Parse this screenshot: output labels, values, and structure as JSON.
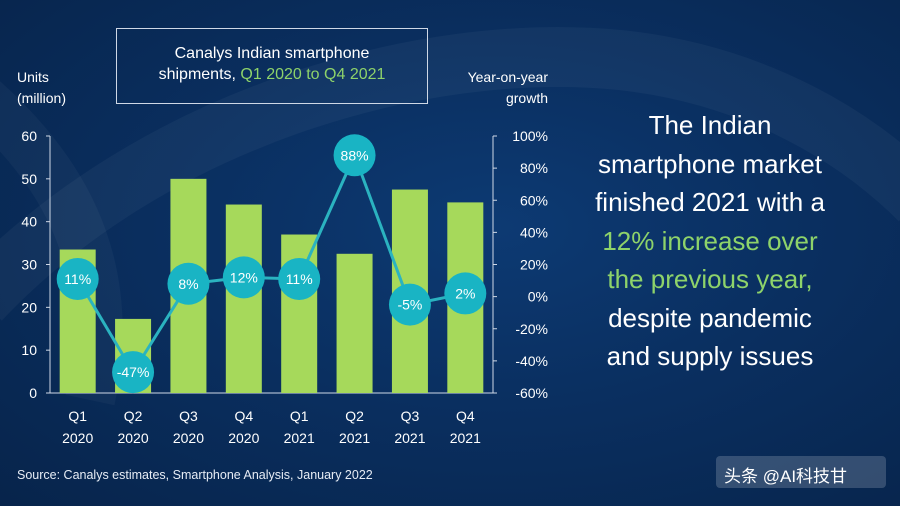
{
  "title": {
    "line1": "Canalys Indian smartphone",
    "line2_prefix": "shipments, ",
    "line2_accent": "Q1 2020 to Q4 2021"
  },
  "left_axis_title": {
    "line1": "Units",
    "line2": "(million)"
  },
  "right_axis_title": {
    "line1": "Year-on-year",
    "line2": "growth"
  },
  "statement": {
    "line1": "The Indian",
    "line2": "smartphone market",
    "line3": "finished 2021 with a",
    "line4_accent": "12% increase over",
    "line5_accent": "the previous year,",
    "line6": "despite pandemic",
    "line7": "and supply issues"
  },
  "source": "Source: Canalys estimates, Smartphone Analysis, January 2022",
  "watermark": "头条 @AI科技甘",
  "colors": {
    "bar": "#a6d95b",
    "line": "#2bb3c0",
    "bubble": "#19b4c4",
    "accent_text": "#8ed36a"
  },
  "chart_data": {
    "type": "bar",
    "categories": [
      [
        "Q1",
        "2020"
      ],
      [
        "Q2",
        "2020"
      ],
      [
        "Q3",
        "2020"
      ],
      [
        "Q4",
        "2020"
      ],
      [
        "Q1",
        "2021"
      ],
      [
        "Q2",
        "2021"
      ],
      [
        "Q3",
        "2021"
      ],
      [
        "Q4",
        "2021"
      ]
    ],
    "series": [
      {
        "type": "bar",
        "axis": "left",
        "values": [
          33.5,
          17.3,
          50.0,
          44.0,
          37.0,
          32.5,
          47.5,
          44.5
        ]
      },
      {
        "type": "line",
        "axis": "right",
        "values": [
          11,
          -47,
          8,
          12,
          11,
          88,
          -5,
          2
        ],
        "labels": [
          "11%",
          "-47%",
          "8%",
          "12%",
          "11%",
          "88%",
          "-5%",
          "2%"
        ]
      }
    ],
    "ylim_left": [
      0,
      60
    ],
    "yticks_left": [
      "0",
      "10",
      "20",
      "30",
      "40",
      "50",
      "60"
    ],
    "ylim_right": [
      -60,
      100
    ],
    "yticks_right": [
      "-60%",
      "-40%",
      "-20%",
      "0%",
      "20%",
      "40%",
      "60%",
      "80%",
      "100%"
    ],
    "ylabel_left": "Units (million)",
    "ylabel_right": "Year-on-year growth",
    "grid": false
  }
}
